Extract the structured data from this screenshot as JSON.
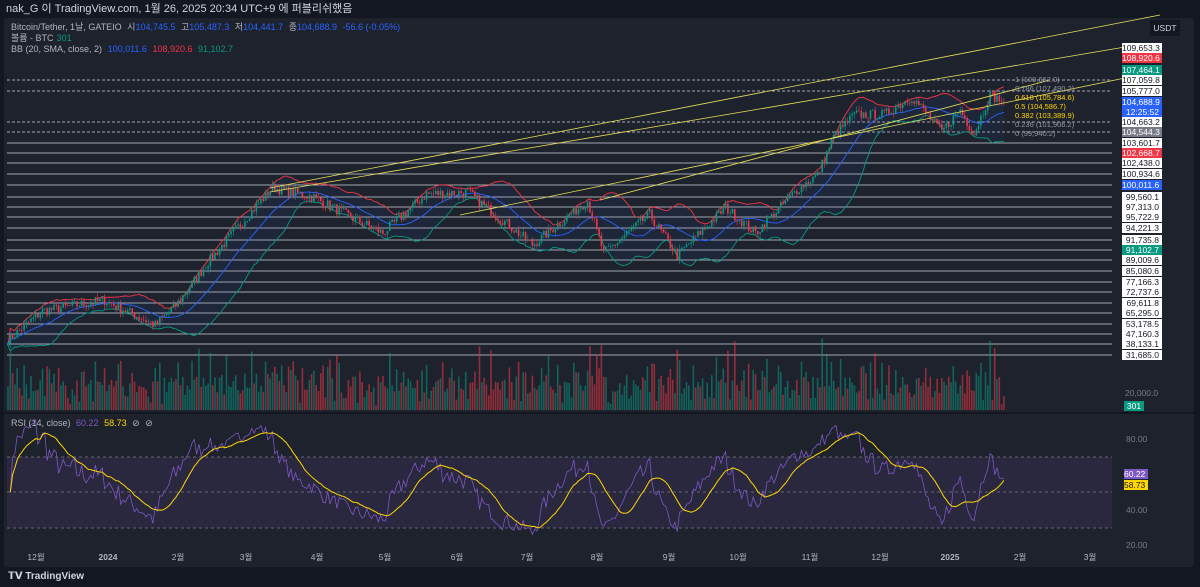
{
  "header": {
    "published": "nak_G 이 TradingView.com, 1월 26, 2025 20:34 UTC+9 에 퍼블리쉬했음"
  },
  "legend": {
    "symbol": "Bitcoin/Tether, 1날, GATEIO",
    "o_label": "시",
    "o": "104,745.5",
    "h_label": "고",
    "h": "105,487.3",
    "l_label": "저",
    "l": "104,441.7",
    "c_label": "종",
    "c": "104,688.9",
    "chg": "-56.6 (-0.05%)",
    "volume": "볼륨 - BTC",
    "volume_val": "301",
    "bb": "BB (20, SMA, close, 2)",
    "bb_basis": "100,011.6",
    "bb_upper": "108,920.6",
    "bb_lower": "91,102.7",
    "rsi": "RSI (14, close)",
    "rsi_val": "60.22",
    "rsi_ma": "58.73",
    "eye1": "⊘",
    "eye2": "⊘"
  },
  "price_axis": {
    "currency": "USDT",
    "labels": [
      {
        "v": "109,653.3",
        "bg": "#ffffff",
        "fg": "#131722"
      },
      {
        "v": "108,920.6",
        "bg": "#f23645",
        "fg": "#ffffff"
      },
      {
        "v": "107,464.1",
        "bg": "#089981",
        "fg": "#ffffff"
      },
      {
        "v": "107,059.8"
      },
      {
        "v": "105,777.0"
      },
      {
        "v": "104,688.9",
        "bg": "#2962ff",
        "fg": "#ffffff"
      },
      {
        "v": "12:25:52",
        "bg": "#2962ff",
        "fg": "#ffffff"
      },
      {
        "v": "104,663.2"
      },
      {
        "v": "104,544.3",
        "bg": "#787b86",
        "fg": "#ffffff"
      },
      {
        "v": "103,601.7"
      },
      {
        "v": "102,668.7",
        "bg": "#f23645",
        "fg": "#ffffff"
      },
      {
        "v": "102,438.0"
      },
      {
        "v": "100,934.6"
      },
      {
        "v": "100,011.6",
        "bg": "#2962ff",
        "fg": "#ffffff"
      },
      {
        "v": "99,560.1"
      },
      {
        "v": "97,313.0"
      },
      {
        "v": "95,722.9"
      },
      {
        "v": "94,221.3"
      },
      {
        "v": "91,735.8"
      },
      {
        "v": "91,102.7",
        "bg": "#089981",
        "fg": "#ffffff"
      },
      {
        "v": "89,009.6"
      },
      {
        "v": "85,080.6"
      },
      {
        "v": "77,166.3"
      },
      {
        "v": "72,737.6"
      },
      {
        "v": "69,611.8"
      },
      {
        "v": "65,295.0"
      },
      {
        "v": "53,178.5"
      },
      {
        "v": "47,160.3"
      },
      {
        "v": "38,133.1"
      },
      {
        "v": "31,685.0"
      }
    ],
    "volume_scale": "20,000.0",
    "volume_last": "301"
  },
  "rsi_axis": [
    "80.00",
    "40.00",
    "20.00"
  ],
  "fib_labels": [
    "1 (109,662.0)",
    "0.786 (107,490.2)",
    "0.618 (105,784.6)",
    "0.5 (104,586.7)",
    "0.382 (103,389.9)",
    "0.236 (101,906.2)",
    "0 (99,940.2)"
  ],
  "time_axis": [
    "12월",
    "2024",
    "2월",
    "3월",
    "4월",
    "5월",
    "6월",
    "7월",
    "8월",
    "9월",
    "10월",
    "11월",
    "12월",
    "2025",
    "2월",
    "3월"
  ],
  "footer": {
    "brand": "TradingView"
  },
  "colors": {
    "up": "#089981",
    "down": "#f23645",
    "bb_basis": "#2962ff",
    "bb_upper": "#f23645",
    "bb_lower": "#089981",
    "rsi": "#7e57c2",
    "rsi_ma": "#ffd600",
    "trend": "#e8e05a"
  },
  "chart_data": {
    "type": "candlestick",
    "title": "Bitcoin/Tether, 1D, GATEIO",
    "yscale": "log",
    "ylabel": "USDT",
    "keypoints_date_price": [
      [
        "2023-11-20",
        37000
      ],
      [
        "2023-12-05",
        42000
      ],
      [
        "2024-01-01",
        44000
      ],
      [
        "2024-01-23",
        39500
      ],
      [
        "2024-02-01",
        43000
      ],
      [
        "2024-02-15",
        52000
      ],
      [
        "2024-03-01",
        62000
      ],
      [
        "2024-03-14",
        72000
      ],
      [
        "2024-04-01",
        69000
      ],
      [
        "2024-04-15",
        64000
      ],
      [
        "2024-05-01",
        59000
      ],
      [
        "2024-05-20",
        70000
      ],
      [
        "2024-06-07",
        70500
      ],
      [
        "2024-06-25",
        61000
      ],
      [
        "2024-07-05",
        56000
      ],
      [
        "2024-07-29",
        68000
      ],
      [
        "2024-08-05",
        54000
      ],
      [
        "2024-08-25",
        64000
      ],
      [
        "2024-09-06",
        53500
      ],
      [
        "2024-09-27",
        66000
      ],
      [
        "2024-10-10",
        59000
      ],
      [
        "2024-10-29",
        72000
      ],
      [
        "2024-11-06",
        76000
      ],
      [
        "2024-11-13",
        90000
      ],
      [
        "2024-11-22",
        99000
      ],
      [
        "2024-12-05",
        99000
      ],
      [
        "2024-12-17",
        107000
      ],
      [
        "2024-12-30",
        92000
      ],
      [
        "2025-01-07",
        101000
      ],
      [
        "2025-01-13",
        91000
      ],
      [
        "2025-01-20",
        108000
      ],
      [
        "2025-01-26",
        104688.9
      ]
    ],
    "rsi": {
      "period": 14,
      "last": 60.22,
      "ma_last": 58.73,
      "bands": [
        30,
        70
      ]
    },
    "bb": {
      "period": 20,
      "mult": 2,
      "basis": 100011.6,
      "upper": 108920.6,
      "lower": 91102.7
    }
  }
}
